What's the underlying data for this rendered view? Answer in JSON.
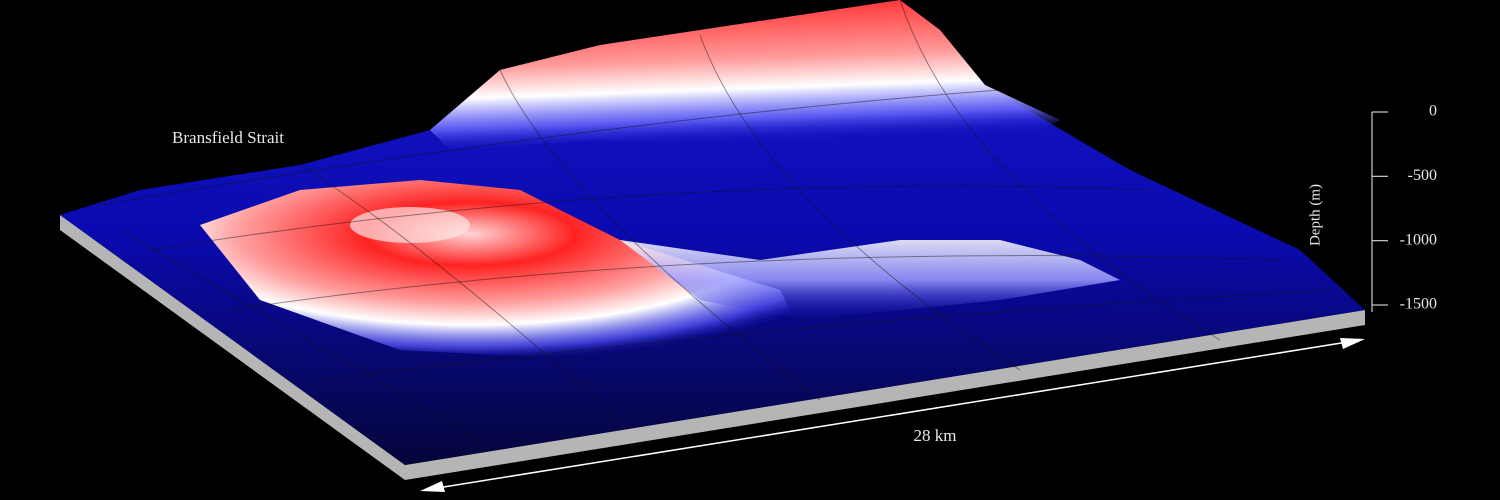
{
  "title": "Bransfield Strait",
  "scale_label": "28 km",
  "depth_axis": {
    "label": "Depth (m)",
    "lim": [
      0,
      -1500
    ],
    "ticks": [
      0,
      -500,
      -1000,
      -1500
    ]
  }
}
